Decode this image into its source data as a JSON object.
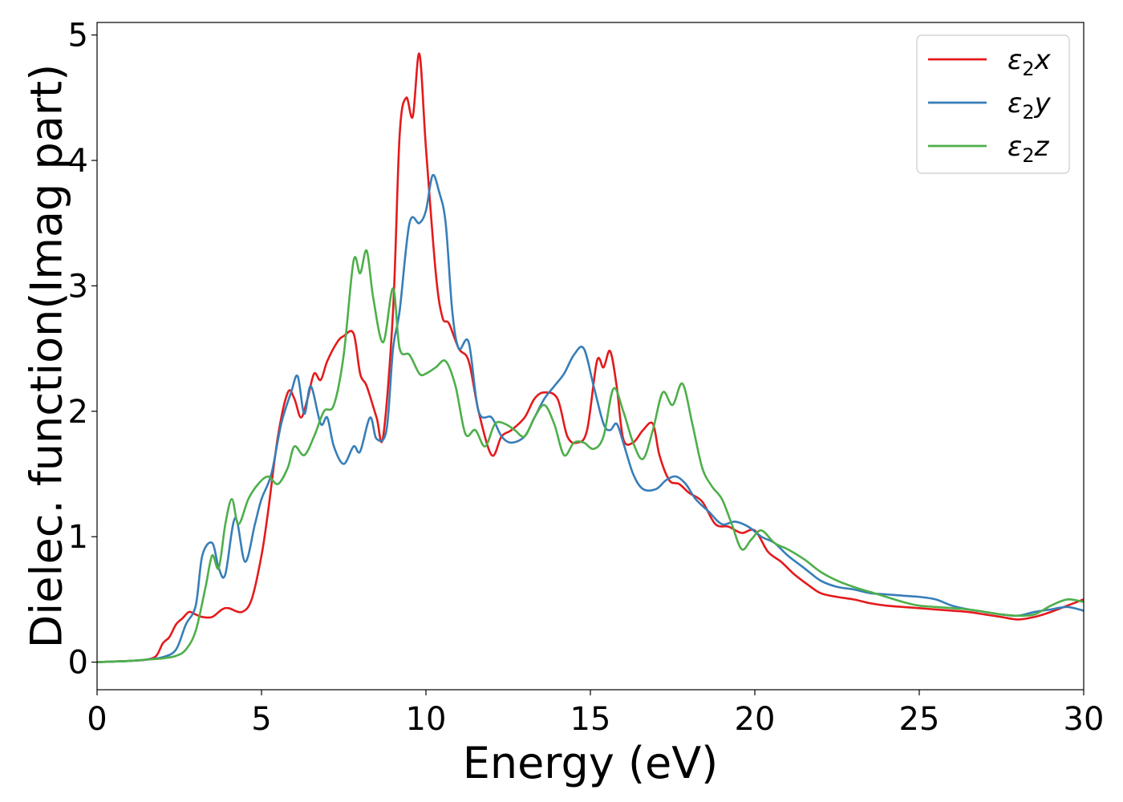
{
  "chart_data": {
    "type": "line",
    "title": "",
    "xlabel": "Energy (eV)",
    "ylabel": "Dielec. function(Imag part)",
    "xlim": [
      0,
      30
    ],
    "ylim": [
      -0.22,
      5.1
    ],
    "xticks": [
      0,
      5,
      10,
      15,
      20,
      25,
      30
    ],
    "xtick_labels": [
      "0",
      "5",
      "10",
      "15",
      "20",
      "25",
      "30"
    ],
    "yticks": [
      0,
      1,
      2,
      3,
      4,
      5
    ],
    "ytick_labels": [
      "0",
      "1",
      "2",
      "3",
      "4",
      "5"
    ],
    "grid": false,
    "legend_position": "top-right",
    "series": [
      {
        "name": "ε₂x",
        "legend_main": "ε",
        "legend_sub": "2",
        "legend_var": "x",
        "color": "#e41a1c",
        "x": [
          0,
          1,
          1.5,
          1.8,
          2.0,
          2.2,
          2.4,
          2.6,
          2.8,
          3.0,
          3.2,
          3.5,
          3.8,
          4.0,
          4.4,
          4.7,
          5.0,
          5.2,
          5.5,
          5.8,
          6.0,
          6.2,
          6.4,
          6.6,
          6.8,
          7.0,
          7.3,
          7.5,
          7.8,
          8.0,
          8.2,
          8.5,
          8.7,
          9.0,
          9.2,
          9.4,
          9.6,
          9.8,
          10.0,
          10.3,
          10.5,
          10.7,
          11.0,
          11.3,
          11.6,
          12.0,
          12.3,
          12.6,
          13.0,
          13.3,
          13.6,
          14.0,
          14.3,
          14.6,
          14.9,
          15.2,
          15.4,
          15.6,
          15.8,
          16.0,
          16.3,
          16.6,
          16.9,
          17.1,
          17.4,
          17.7,
          18.0,
          18.4,
          18.8,
          19.2,
          19.6,
          20.0,
          20.4,
          20.8,
          21.2,
          21.6,
          22.0,
          22.5,
          23.0,
          23.5,
          24.0,
          24.5,
          25.0,
          25.5,
          26.0,
          26.5,
          27.0,
          27.5,
          28.0,
          28.5,
          29.0,
          29.5,
          30.0
        ],
        "y": [
          0,
          0.01,
          0.02,
          0.05,
          0.15,
          0.2,
          0.3,
          0.35,
          0.4,
          0.38,
          0.36,
          0.36,
          0.42,
          0.43,
          0.4,
          0.5,
          0.85,
          1.2,
          1.8,
          2.15,
          2.1,
          1.95,
          2.1,
          2.3,
          2.25,
          2.4,
          2.55,
          2.6,
          2.62,
          2.3,
          2.2,
          1.95,
          1.8,
          2.8,
          4.2,
          4.5,
          4.35,
          4.85,
          4.1,
          3.1,
          2.75,
          2.7,
          2.5,
          2.4,
          2.0,
          1.65,
          1.8,
          1.85,
          1.95,
          2.1,
          2.15,
          2.1,
          1.8,
          1.75,
          1.85,
          2.4,
          2.35,
          2.48,
          2.2,
          1.78,
          1.75,
          1.85,
          1.9,
          1.65,
          1.45,
          1.42,
          1.35,
          1.28,
          1.1,
          1.08,
          1.03,
          1.05,
          0.88,
          0.8,
          0.7,
          0.62,
          0.55,
          0.52,
          0.5,
          0.47,
          0.45,
          0.44,
          0.43,
          0.42,
          0.41,
          0.4,
          0.38,
          0.36,
          0.34,
          0.36,
          0.4,
          0.45,
          0.5
        ]
      },
      {
        "name": "ε₂y",
        "legend_main": "ε",
        "legend_sub": "2",
        "legend_var": "y",
        "color": "#377eb8",
        "x": [
          0,
          1,
          1.5,
          2.0,
          2.4,
          2.7,
          3.0,
          3.2,
          3.5,
          3.7,
          3.9,
          4.2,
          4.5,
          4.8,
          5.0,
          5.3,
          5.6,
          5.9,
          6.1,
          6.3,
          6.5,
          6.8,
          7.0,
          7.2,
          7.5,
          7.8,
          8.0,
          8.3,
          8.5,
          8.8,
          9.0,
          9.2,
          9.5,
          9.8,
          10.0,
          10.2,
          10.4,
          10.6,
          10.8,
          11.0,
          11.3,
          11.6,
          12.0,
          12.3,
          12.6,
          13.0,
          13.3,
          13.6,
          13.9,
          14.2,
          14.5,
          14.8,
          15.1,
          15.4,
          15.6,
          15.8,
          16.0,
          16.3,
          16.6,
          17.0,
          17.3,
          17.6,
          17.9,
          18.2,
          18.6,
          19.0,
          19.4,
          19.8,
          20.2,
          20.6,
          21.0,
          21.5,
          22.0,
          22.5,
          23.0,
          23.5,
          24.0,
          24.5,
          25.0,
          25.5,
          26.0,
          26.5,
          27.0,
          27.5,
          28.0,
          28.5,
          29.0,
          29.5,
          30.0
        ],
        "y": [
          0,
          0.01,
          0.02,
          0.04,
          0.1,
          0.3,
          0.45,
          0.85,
          0.95,
          0.75,
          0.7,
          1.15,
          0.8,
          1.1,
          1.3,
          1.5,
          1.9,
          2.15,
          2.28,
          1.98,
          2.2,
          1.9,
          1.95,
          1.72,
          1.58,
          1.72,
          1.68,
          1.95,
          1.78,
          1.85,
          2.5,
          2.8,
          3.5,
          3.5,
          3.6,
          3.88,
          3.75,
          3.5,
          2.8,
          2.5,
          2.55,
          2.0,
          1.95,
          1.8,
          1.75,
          1.8,
          1.95,
          2.1,
          2.2,
          2.3,
          2.45,
          2.5,
          2.2,
          1.9,
          1.85,
          1.9,
          1.75,
          1.5,
          1.38,
          1.38,
          1.45,
          1.48,
          1.42,
          1.3,
          1.2,
          1.1,
          1.12,
          1.08,
          1.0,
          0.95,
          0.85,
          0.75,
          0.65,
          0.6,
          0.58,
          0.55,
          0.54,
          0.53,
          0.52,
          0.5,
          0.45,
          0.42,
          0.4,
          0.38,
          0.37,
          0.4,
          0.42,
          0.44,
          0.41
        ]
      },
      {
        "name": "ε₂z",
        "legend_main": "ε",
        "legend_sub": "2",
        "legend_var": "z",
        "color": "#4daf4a",
        "x": [
          0,
          1,
          1.5,
          2.0,
          2.4,
          2.7,
          3.0,
          3.3,
          3.5,
          3.7,
          3.9,
          4.1,
          4.3,
          4.6,
          4.9,
          5.2,
          5.5,
          5.8,
          6.0,
          6.3,
          6.6,
          6.9,
          7.2,
          7.5,
          7.8,
          8.0,
          8.2,
          8.4,
          8.7,
          9.0,
          9.2,
          9.5,
          9.8,
          10.0,
          10.3,
          10.6,
          10.9,
          11.2,
          11.5,
          11.8,
          12.1,
          12.4,
          12.7,
          13.0,
          13.3,
          13.6,
          13.9,
          14.2,
          14.5,
          14.8,
          15.1,
          15.4,
          15.7,
          16.0,
          16.3,
          16.6,
          16.9,
          17.2,
          17.5,
          17.8,
          18.1,
          18.4,
          18.7,
          19.0,
          19.3,
          19.6,
          19.9,
          20.2,
          20.6,
          21.0,
          21.5,
          22.0,
          22.5,
          23.0,
          23.5,
          24.0,
          24.5,
          25.0,
          25.5,
          26.0,
          26.5,
          27.0,
          27.5,
          28.0,
          28.5,
          29.0,
          29.5,
          30.0
        ],
        "y": [
          0,
          0.01,
          0.02,
          0.03,
          0.05,
          0.1,
          0.25,
          0.6,
          0.85,
          0.75,
          1.1,
          1.3,
          1.1,
          1.3,
          1.42,
          1.48,
          1.42,
          1.55,
          1.72,
          1.65,
          1.8,
          2.0,
          2.05,
          2.45,
          3.2,
          3.1,
          3.28,
          2.9,
          2.55,
          2.98,
          2.5,
          2.45,
          2.3,
          2.3,
          2.35,
          2.4,
          2.2,
          1.82,
          1.85,
          1.72,
          1.9,
          1.9,
          1.85,
          1.8,
          1.95,
          2.05,
          1.9,
          1.65,
          1.75,
          1.75,
          1.7,
          1.8,
          2.18,
          2.0,
          1.75,
          1.62,
          1.85,
          2.15,
          2.05,
          2.22,
          1.9,
          1.55,
          1.4,
          1.3,
          1.1,
          0.9,
          0.98,
          1.05,
          0.95,
          0.9,
          0.82,
          0.72,
          0.65,
          0.6,
          0.56,
          0.52,
          0.48,
          0.45,
          0.44,
          0.43,
          0.42,
          0.4,
          0.38,
          0.37,
          0.38,
          0.45,
          0.5,
          0.48
        ]
      }
    ]
  }
}
